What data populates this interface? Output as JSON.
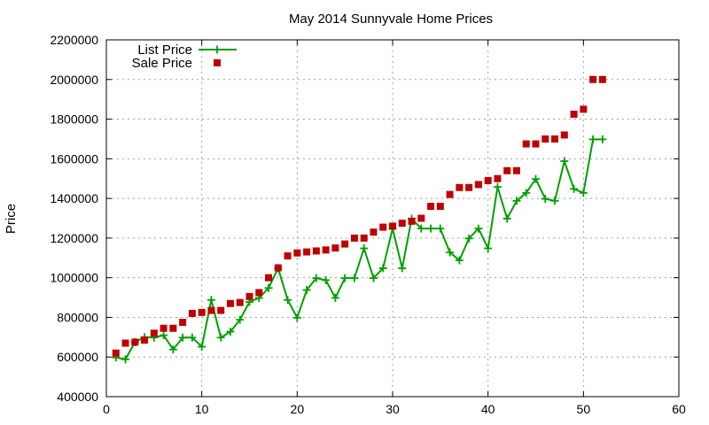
{
  "chart_data": {
    "type": "line",
    "title": "May 2014 Sunnyvale Home Prices",
    "xlabel": "",
    "ylabel": "Price",
    "xlim": [
      0,
      60
    ],
    "ylim": [
      400000,
      2200000
    ],
    "xticks": [
      0,
      10,
      20,
      30,
      40,
      50,
      60
    ],
    "yticks": [
      400000,
      600000,
      800000,
      1000000,
      1200000,
      1400000,
      1600000,
      1800000,
      2000000,
      2200000
    ],
    "grid": true,
    "legend_position": "top-left",
    "x": [
      1,
      2,
      3,
      4,
      5,
      6,
      7,
      8,
      9,
      10,
      11,
      12,
      13,
      14,
      15,
      16,
      17,
      18,
      19,
      20,
      21,
      22,
      23,
      24,
      25,
      26,
      27,
      28,
      29,
      30,
      31,
      32,
      33,
      34,
      35,
      36,
      37,
      38,
      39,
      40,
      41,
      42,
      43,
      44,
      45,
      46,
      47,
      48,
      49,
      50,
      51,
      52
    ],
    "series": [
      {
        "name": "List Price",
        "style": "line+plus",
        "color": "#00a000",
        "values": [
          598000,
          588000,
          675000,
          700000,
          698000,
          710000,
          638000,
          698000,
          698000,
          652000,
          888000,
          698000,
          728000,
          788000,
          878000,
          898000,
          948000,
          1048000,
          888000,
          798000,
          938000,
          998000,
          988000,
          898000,
          998000,
          998000,
          1148000,
          998000,
          1048000,
          1248000,
          1048000,
          1298000,
          1248000,
          1248000,
          1248000,
          1128000,
          1088000,
          1198000,
          1248000,
          1148000,
          1458000,
          1298000,
          1388000,
          1428000,
          1498000,
          1398000,
          1388000,
          1588000,
          1448000,
          1428000,
          1698000,
          1698000
        ]
      },
      {
        "name": "Sale Price",
        "style": "points-square",
        "color": "#c00000",
        "values": [
          620000,
          670000,
          675000,
          685000,
          720000,
          745000,
          745000,
          775000,
          820000,
          825000,
          835000,
          835000,
          870000,
          875000,
          905000,
          925000,
          1000000,
          1050000,
          1110000,
          1125000,
          1130000,
          1135000,
          1140000,
          1150000,
          1170000,
          1200000,
          1200000,
          1230000,
          1255000,
          1260000,
          1275000,
          1285000,
          1300000,
          1360000,
          1360000,
          1420000,
          1455000,
          1455000,
          1470000,
          1490000,
          1500000,
          1540000,
          1540000,
          1675000,
          1675000,
          1700000,
          1700000,
          1720000,
          1825000,
          1850000,
          2000000,
          2000000
        ]
      }
    ]
  }
}
